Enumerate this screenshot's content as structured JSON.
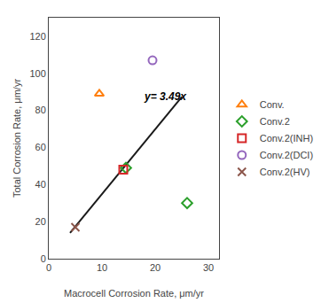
{
  "chart_data": {
    "type": "scatter",
    "xlabel": "Macrocell Corrosion Rate, μm/yr",
    "ylabel": "Total Corrosion Rate, μm/yr",
    "xlim": [
      0,
      32
    ],
    "ylim": [
      0,
      130
    ],
    "xticks": [
      0,
      10,
      20,
      30
    ],
    "yticks": [
      0,
      20,
      40,
      60,
      80,
      100,
      120
    ],
    "grid": false,
    "legend": "right",
    "series": [
      {
        "type": "line",
        "color": "#1a1a1a",
        "x": [
          4.0,
          25.0
        ],
        "values": [
          13.96,
          87.25
        ]
      },
      {
        "name": "Conv.",
        "marker": "triangle-up",
        "x": [
          9.5
        ],
        "values": [
          89
        ]
      },
      {
        "name": "Conv.2",
        "marker": "diamond",
        "x": [
          26.0,
          14.5
        ],
        "values": [
          30,
          49
        ]
      },
      {
        "name": "Conv.2(INH)",
        "marker": "square",
        "x": [
          14.0
        ],
        "values": [
          48
        ]
      },
      {
        "name": "Conv.2(DCI)",
        "marker": "circle",
        "x": [
          19.5
        ],
        "values": [
          107
        ]
      },
      {
        "name": "Conv.2(HV)",
        "marker": "x",
        "x": [
          5.0
        ],
        "values": [
          17
        ]
      }
    ],
    "annotations": [
      {
        "text": "y= 3.49x",
        "x": 17.5,
        "y": 83
      }
    ]
  }
}
